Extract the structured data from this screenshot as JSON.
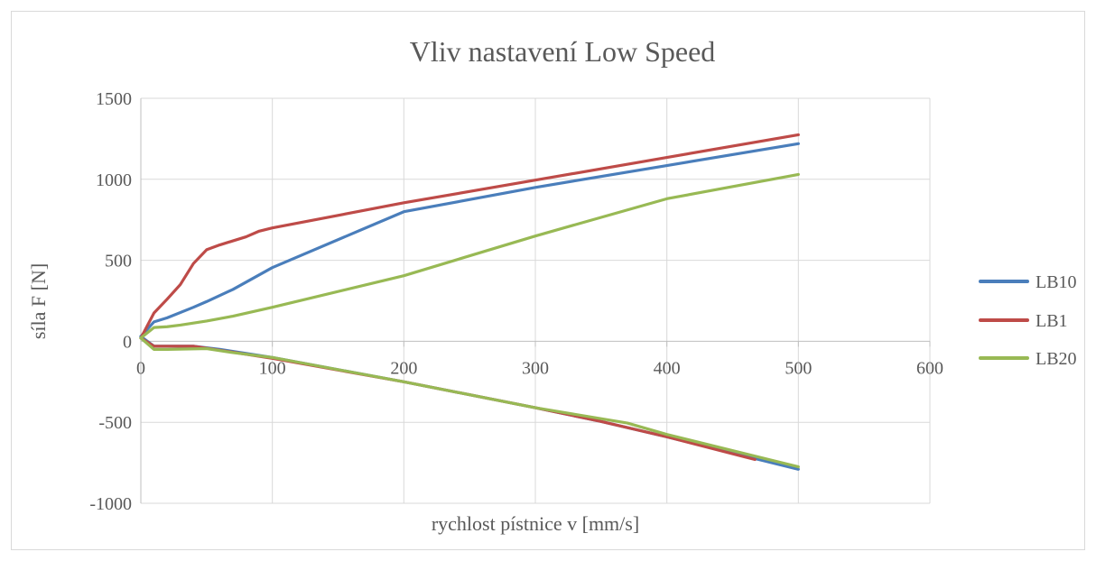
{
  "chart_data": {
    "type": "line",
    "title": "Vliv nastavení Low Speed",
    "xlabel": "rychlost pístnice v [mm/s]",
    "ylabel": "síla F [N]",
    "xlim": [
      0,
      600
    ],
    "ylim": [
      -1000,
      1500
    ],
    "xticks": [
      0,
      100,
      200,
      300,
      400,
      500,
      600
    ],
    "yticks": [
      -1000,
      -500,
      0,
      500,
      1000,
      1500
    ],
    "xtick_labels": [
      "0",
      "100",
      "200",
      "300",
      "400",
      "500",
      "600"
    ],
    "ytick_labels": [
      "-1000",
      "-500",
      "0",
      "500",
      "1000",
      "1500"
    ],
    "grid": true,
    "legend_position": "right",
    "series": [
      {
        "name": "LB10",
        "color": "#4a7ebb",
        "compression": [
          [
            0,
            30
          ],
          [
            10,
            120
          ],
          [
            20,
            145
          ],
          [
            40,
            210
          ],
          [
            50,
            245
          ],
          [
            70,
            320
          ],
          [
            100,
            455
          ],
          [
            200,
            800
          ],
          [
            300,
            950
          ],
          [
            400,
            1085
          ],
          [
            500,
            1220
          ]
        ],
        "rebound": [
          [
            0,
            30
          ],
          [
            10,
            -30
          ],
          [
            40,
            -30
          ],
          [
            60,
            -50
          ],
          [
            80,
            -75
          ],
          [
            100,
            -100
          ],
          [
            200,
            -250
          ],
          [
            300,
            -410
          ],
          [
            350,
            -495
          ],
          [
            400,
            -590
          ],
          [
            450,
            -690
          ],
          [
            500,
            -790
          ]
        ]
      },
      {
        "name": "LB1",
        "color": "#be4b48",
        "compression": [
          [
            0,
            20
          ],
          [
            10,
            175
          ],
          [
            20,
            260
          ],
          [
            30,
            350
          ],
          [
            40,
            480
          ],
          [
            50,
            565
          ],
          [
            60,
            595
          ],
          [
            70,
            620
          ],
          [
            80,
            645
          ],
          [
            90,
            680
          ],
          [
            100,
            700
          ],
          [
            200,
            855
          ],
          [
            300,
            995
          ],
          [
            400,
            1135
          ],
          [
            500,
            1275
          ]
        ],
        "rebound": [
          [
            0,
            20
          ],
          [
            10,
            -30
          ],
          [
            40,
            -30
          ],
          [
            60,
            -55
          ],
          [
            80,
            -80
          ],
          [
            100,
            -105
          ],
          [
            200,
            -250
          ],
          [
            300,
            -410
          ],
          [
            350,
            -495
          ],
          [
            400,
            -590
          ],
          [
            467,
            -730
          ]
        ]
      },
      {
        "name": "LB20",
        "color": "#98b954",
        "compression": [
          [
            0,
            20
          ],
          [
            10,
            85
          ],
          [
            20,
            90
          ],
          [
            30,
            100
          ],
          [
            50,
            125
          ],
          [
            70,
            155
          ],
          [
            100,
            210
          ],
          [
            200,
            405
          ],
          [
            300,
            650
          ],
          [
            400,
            880
          ],
          [
            500,
            1030
          ]
        ],
        "rebound": [
          [
            0,
            20
          ],
          [
            10,
            -50
          ],
          [
            20,
            -50
          ],
          [
            50,
            -45
          ],
          [
            70,
            -70
          ],
          [
            100,
            -100
          ],
          [
            200,
            -250
          ],
          [
            300,
            -410
          ],
          [
            370,
            -505
          ],
          [
            400,
            -575
          ],
          [
            500,
            -775
          ]
        ]
      }
    ]
  }
}
